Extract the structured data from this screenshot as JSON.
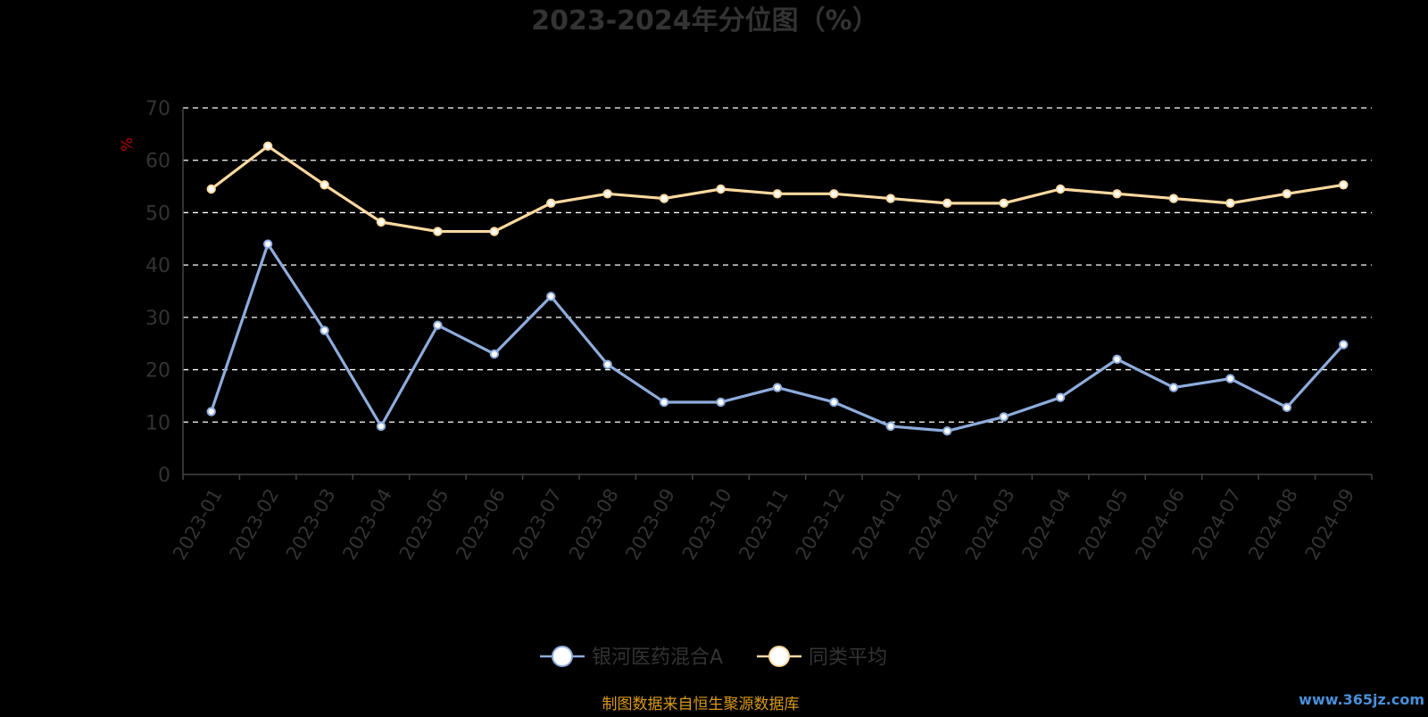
{
  "chart_data": {
    "type": "line",
    "title": "2023-2024年分位图（%）",
    "ylabel": "%",
    "ylim": [
      0,
      70
    ],
    "yticks": [
      0,
      10,
      20,
      30,
      40,
      50,
      60,
      70
    ],
    "grid": true,
    "legend_position": "bottom",
    "categories": [
      "2023-01",
      "2023-02",
      "2023-03",
      "2023-04",
      "2023-05",
      "2023-06",
      "2023-07",
      "2023-08",
      "2023-09",
      "2023-10",
      "2023-11",
      "2023-12",
      "2024-01",
      "2024-02",
      "2024-03",
      "2024-04",
      "2024-05",
      "2024-06",
      "2024-07",
      "2024-08",
      "2024-09"
    ],
    "series": [
      {
        "name": "银河医药混合A",
        "color": "#8eacdc",
        "values": [
          12,
          44,
          27.5,
          9.2,
          28.5,
          23,
          34,
          21,
          13.8,
          13.8,
          16.6,
          13.8,
          9.2,
          8.3,
          11,
          14.7,
          22,
          16.6,
          18.3,
          12.8,
          24.8
        ]
      },
      {
        "name": "同类平均",
        "color": "#fcd9a0",
        "values": [
          54.5,
          62.7,
          55.3,
          48.2,
          46.4,
          46.4,
          51.8,
          53.6,
          52.7,
          54.5,
          53.6,
          53.6,
          52.7,
          51.8,
          51.8,
          54.5,
          53.6,
          52.7,
          51.8,
          53.6,
          55.3
        ]
      }
    ]
  },
  "source_text": "制图数据来自恒生聚源数据库",
  "watermark": "www.365jz.com",
  "colors": {
    "background": "#000000",
    "axis": "#444444",
    "grid": "#ffffff",
    "text": "#333333",
    "ylabel": "#b30000",
    "source": "#d99a1a",
    "watermark": "#4a90d9"
  }
}
